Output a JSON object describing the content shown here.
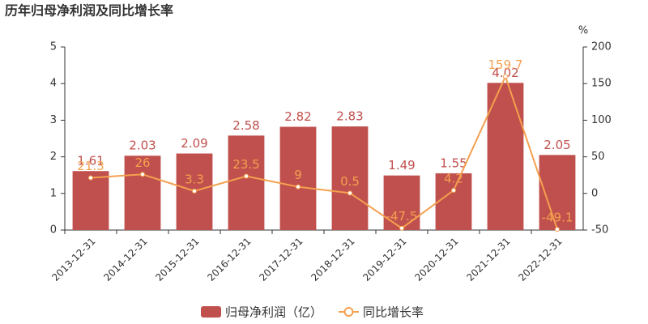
{
  "chart_data": {
    "type": "bar",
    "title": "历年归母净利润及同比增长率",
    "categories": [
      "2013-12-31",
      "2014-12-31",
      "2015-12-31",
      "2016-12-31",
      "2017-12-31",
      "2018-12-31",
      "2019-12-31",
      "2020-12-31",
      "2021-12-31",
      "2022-12-31"
    ],
    "series": [
      {
        "name": "归母净利润（亿）",
        "type": "bar",
        "color": "#c0504d",
        "values": [
          1.61,
          2.03,
          2.09,
          2.58,
          2.82,
          2.83,
          1.49,
          1.55,
          4.02,
          2.05
        ]
      },
      {
        "name": "同比增长率",
        "type": "line",
        "axis": "y2",
        "color": "#f4a04f",
        "values": [
          21.3,
          26,
          3.3,
          23.5,
          9,
          0.5,
          -47.5,
          4.2,
          159.7,
          -49.1
        ]
      }
    ],
    "ylim": [
      0,
      5
    ],
    "yticks": [
      0,
      1,
      2,
      3,
      4,
      5
    ],
    "y2label": "%",
    "y2lim": [
      -50,
      200
    ],
    "y2ticks": [
      -50,
      0,
      50,
      100,
      150,
      200
    ],
    "legend": "bottom"
  }
}
